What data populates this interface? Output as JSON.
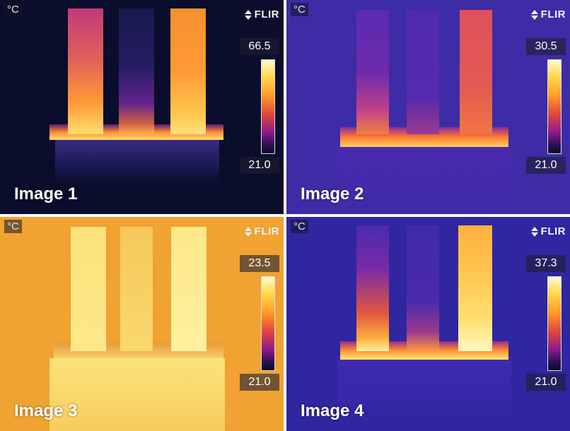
{
  "panels": [
    {
      "unit": "°C",
      "brand": "FLIR",
      "max": "66.5",
      "min": "21.0",
      "caption": "Image 1"
    },
    {
      "unit": "°C",
      "brand": "FLIR",
      "max": "30.5",
      "min": "21.0",
      "caption": "Image 2"
    },
    {
      "unit": "°C",
      "brand": "FLIR",
      "max": "23.5",
      "min": "21.0",
      "caption": "Image 3"
    },
    {
      "unit": "°C",
      "brand": "FLIR",
      "max": "37.3",
      "min": "21.0",
      "caption": "Image 4"
    }
  ]
}
